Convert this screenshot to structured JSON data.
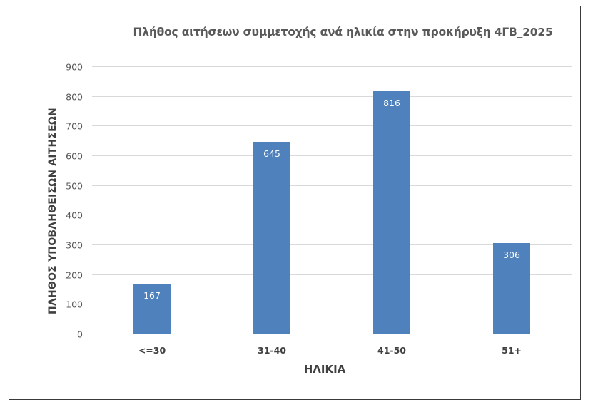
{
  "chart_data": {
    "type": "bar",
    "title": "Πλήθος αιτήσεων συμμετοχής ανά ηλικία στην προκήρυξη 4ΓΒ_2025",
    "xlabel": "ΗΛΙΚΙΑ",
    "ylabel": "ΠΛΗΘΟΣ ΥΠΟΒΛΗΘΕΙΣΩΝ ΑΙΤΗΣΕΩΝ",
    "categories": [
      "<=30",
      "31-40",
      "41-50",
      "51+"
    ],
    "values": [
      167,
      645,
      816,
      306
    ],
    "ylim": [
      0,
      900
    ],
    "yticks": [
      "0",
      "100",
      "200",
      "300",
      "400",
      "500",
      "600",
      "700",
      "800",
      "900"
    ],
    "grid": true,
    "legend": null,
    "data_labels": [
      "167",
      "645",
      "816",
      "306"
    ],
    "bar_color": "#4f81bd"
  }
}
